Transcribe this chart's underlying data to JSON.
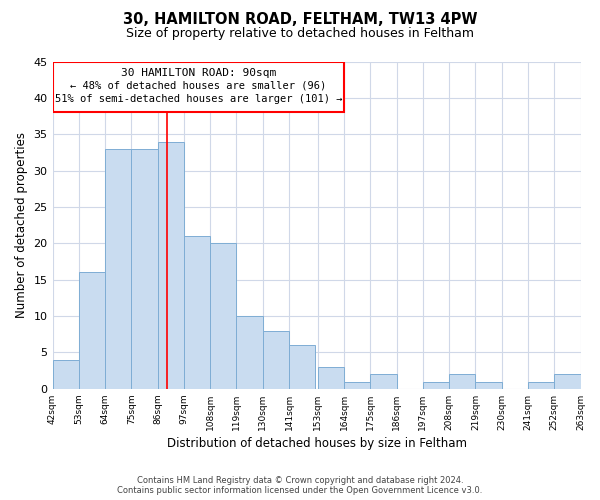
{
  "title": "30, HAMILTON ROAD, FELTHAM, TW13 4PW",
  "subtitle": "Size of property relative to detached houses in Feltham",
  "xlabel": "Distribution of detached houses by size in Feltham",
  "ylabel": "Number of detached properties",
  "bar_values": [
    4,
    16,
    33,
    33,
    34,
    21,
    20,
    10,
    8,
    6,
    3,
    1,
    2,
    0,
    1,
    2,
    1,
    0,
    1,
    2
  ],
  "bin_edges": [
    42,
    53,
    64,
    75,
    86,
    97,
    108,
    119,
    130,
    141,
    153,
    164,
    175,
    186,
    197,
    208,
    219,
    230,
    241,
    252,
    263
  ],
  "tick_labels": [
    "42sqm",
    "53sqm",
    "64sqm",
    "75sqm",
    "86sqm",
    "97sqm",
    "108sqm",
    "119sqm",
    "130sqm",
    "141sqm",
    "153sqm",
    "164sqm",
    "175sqm",
    "186sqm",
    "197sqm",
    "208sqm",
    "219sqm",
    "230sqm",
    "241sqm",
    "252sqm",
    "263sqm"
  ],
  "bar_color": "#c9dcf0",
  "bar_edge_color": "#7eadd4",
  "property_line_x": 90,
  "ylim": [
    0,
    45
  ],
  "background_color": "#ffffff",
  "grid_color": "#d0d8e8",
  "annotation_title": "30 HAMILTON ROAD: 90sqm",
  "annotation_line2": "← 48% of detached houses are smaller (96)",
  "annotation_line3": "51% of semi-detached houses are larger (101) →",
  "footer_line1": "Contains HM Land Registry data © Crown copyright and database right 2024.",
  "footer_line2": "Contains public sector information licensed under the Open Government Licence v3.0."
}
